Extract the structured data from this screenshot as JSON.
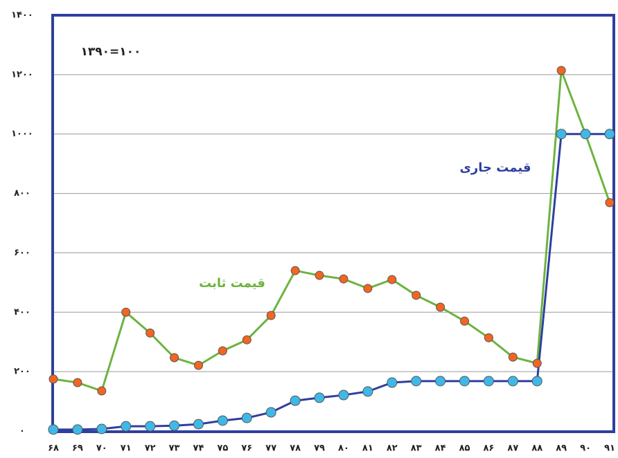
{
  "chart_data": {
    "type": "line",
    "annotations": [
      "۱۳۹۰=۱۰۰"
    ],
    "categories": [
      "۶۸",
      "۶۹",
      "۷۰",
      "۷۱",
      "۷۲",
      "۷۳",
      "۷۴",
      "۷۵",
      "۷۶",
      "۷۷",
      "۷۸",
      "۷۹",
      "۸۰",
      "۸۱",
      "۸۲",
      "۸۳",
      "۸۴",
      "۸۵",
      "۸۶",
      "۸۷",
      "۸۸",
      "۸۹",
      "۹۰",
      "۹۱"
    ],
    "series": [
      {
        "name": "قیمت ثابت",
        "color": "#6db33f",
        "marker_color": "#f26522",
        "values": [
          175,
          163,
          135,
          400,
          330,
          247,
          221,
          270,
          307,
          389,
          540,
          524,
          512,
          480,
          510,
          457,
          417,
          370,
          314,
          249,
          228,
          1214,
          1000,
          769
        ]
      },
      {
        "name": "قیمت جاری",
        "color": "#2e3f9e",
        "marker_color": "#3fb8e8",
        "values": [
          5,
          5,
          7,
          16,
          16,
          18,
          23,
          35,
          44,
          63,
          102,
          112,
          121,
          133,
          163,
          168,
          168,
          168,
          168,
          168,
          168,
          1000,
          1000,
          1000
        ]
      }
    ],
    "ylim": [
      0,
      1400
    ],
    "yticks": [
      {
        "value": 0,
        "label": "۰"
      },
      {
        "value": 200,
        "label": "۲۰۰"
      },
      {
        "value": 400,
        "label": "۴۰۰"
      },
      {
        "value": 600,
        "label": "۶۰۰"
      },
      {
        "value": 800,
        "label": "۸۰۰"
      },
      {
        "value": 1000,
        "label": "۱۰۰۰"
      },
      {
        "value": 1200,
        "label": "۱۲۰۰"
      },
      {
        "value": 1400,
        "label": "۱۴۰۰"
      }
    ],
    "grid": true
  }
}
